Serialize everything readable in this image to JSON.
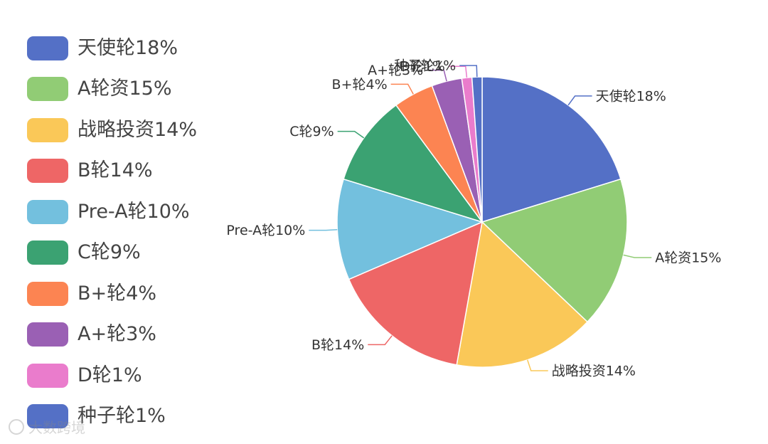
{
  "chart_data": {
    "type": "pie",
    "title": "",
    "start_angle_deg": 90,
    "direction": "clockwise",
    "legend_position": "left",
    "labels_outside": true,
    "slices": [
      {
        "label": "天使轮18%",
        "value": 18,
        "color": "#5470c6"
      },
      {
        "label": "A轮资15%",
        "value": 15,
        "color": "#91cc75"
      },
      {
        "label": "战略投资14%",
        "value": 14,
        "color": "#fac858"
      },
      {
        "label": "B轮14%",
        "value": 14,
        "color": "#ee6666"
      },
      {
        "label": "Pre-A轮10%",
        "value": 10,
        "color": "#73c0de"
      },
      {
        "label": "C轮9%",
        "value": 9,
        "color": "#3ba272"
      },
      {
        "label": "B+轮4%",
        "value": 4,
        "color": "#fc8452"
      },
      {
        "label": "A+轮3%",
        "value": 3,
        "color": "#9a60b4"
      },
      {
        "label": "D轮1%",
        "value": 1,
        "color": "#ea7ccc"
      },
      {
        "label": "种子轮1%",
        "value": 1,
        "color": "#5470c6"
      }
    ]
  },
  "watermark": {
    "text": "大数跨境"
  }
}
